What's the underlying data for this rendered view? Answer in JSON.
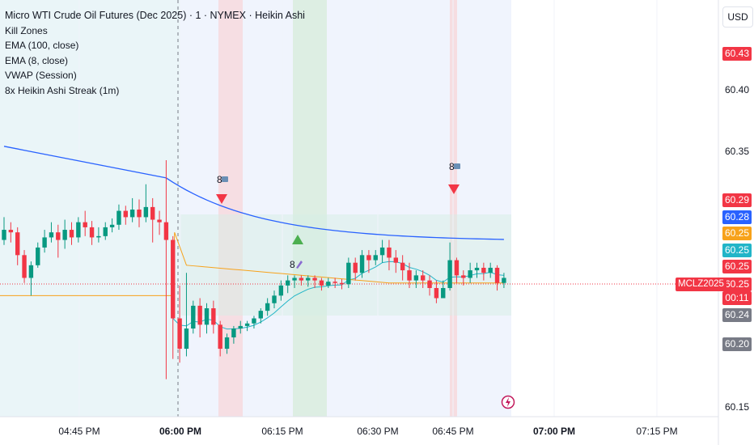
{
  "legend": {
    "title": "Micro WTI Crude Oil Futures (Dec 2025) · 1 · NYMEX · Heikin Ashi",
    "indicators": [
      "Kill Zones",
      "EMA (100, close)",
      "EMA (8, close)",
      "VWAP (Session)",
      "8x Heikin Ashi Streak (1m)"
    ]
  },
  "currency_button": "USD",
  "symbol_tag": "MCLZ2025",
  "countdown": "00:11",
  "price_axis": {
    "ticks": [
      "60.40",
      "60.35",
      "60.15"
    ],
    "badges": [
      {
        "price": 60.43,
        "text": "60.43",
        "color": "#f23645"
      },
      {
        "price": 60.29,
        "text": "60.29",
        "color": "#f23645"
      },
      {
        "price": 60.28,
        "text": "60.28",
        "color": "#2962ff"
      },
      {
        "price": 60.25,
        "text": "60.25",
        "color": "#f7a21b"
      },
      {
        "price": 60.25,
        "text": "60.25",
        "color": "#22b5c8"
      },
      {
        "price": 60.25,
        "text": "60.25",
        "color": "#f23645"
      },
      {
        "price": 60.25,
        "text": "60.25",
        "color": "#f23645"
      },
      {
        "price": 60.24,
        "text": "60.24",
        "color": "#787b86"
      },
      {
        "price": 60.2,
        "text": "60.20",
        "color": "#787b86"
      }
    ]
  },
  "time_axis": [
    {
      "label": "04:45 PM",
      "bold": false
    },
    {
      "label": "06:00 PM",
      "bold": true
    },
    {
      "label": "06:15 PM",
      "bold": false
    },
    {
      "label": "06:30 PM",
      "bold": false
    },
    {
      "label": "06:45 PM",
      "bold": false
    },
    {
      "label": "07:00 PM",
      "bold": true
    },
    {
      "label": "07:15 PM",
      "bold": false
    }
  ],
  "signals": [
    {
      "type": "sell",
      "label": "8",
      "time": "06:07 PM",
      "price": 60.29
    },
    {
      "type": "buy",
      "label": "8",
      "time": "06:15 PM",
      "price": 60.26
    },
    {
      "type": "sell",
      "label": "8",
      "time": "06:45 PM",
      "price": 60.31
    }
  ],
  "colors": {
    "up": "#089981",
    "down": "#f23645",
    "ema100": "#2962ff",
    "ema8": "#22b5c8",
    "vwap": "#f7a21b"
  },
  "chart_data": {
    "type": "candlestick",
    "title": "Micro WTI Crude Oil Futures (Dec 2025) · 1 · NYMEX · Heikin Ashi",
    "ylim": [
      60.14,
      60.45
    ],
    "series": [
      {
        "name": "EMA (100, close)",
        "values_start": 60.356,
        "values_mid": 60.302,
        "values_end": 60.281
      },
      {
        "name": "EMA (8, close)",
        "note_values": [
          60.248,
          60.262,
          60.25
        ]
      },
      {
        "name": "VWAP (Session)",
        "note_values": [
          60.24,
          60.25,
          60.25
        ]
      }
    ],
    "heikin_ashi": [
      [
        60.282,
        60.29,
        60.3,
        60.278
      ],
      [
        60.29,
        60.288,
        60.296,
        60.28
      ],
      [
        60.288,
        60.27,
        60.292,
        60.262
      ],
      [
        60.27,
        60.252,
        60.274,
        60.248
      ],
      [
        60.252,
        60.262,
        60.265,
        60.238
      ],
      [
        60.262,
        60.276,
        60.28,
        60.26
      ],
      [
        60.276,
        60.284,
        60.29,
        60.272
      ],
      [
        60.284,
        60.288,
        60.296,
        60.28
      ],
      [
        60.288,
        60.282,
        60.294,
        60.268
      ],
      [
        60.282,
        60.29,
        60.298,
        60.275
      ],
      [
        60.29,
        60.284,
        60.296,
        60.278
      ],
      [
        60.284,
        60.296,
        60.3,
        60.28
      ],
      [
        60.296,
        60.292,
        60.305,
        60.285
      ],
      [
        60.292,
        60.284,
        60.297,
        60.278
      ],
      [
        60.284,
        60.285,
        60.292,
        60.28
      ],
      [
        60.285,
        60.292,
        60.296,
        60.282
      ],
      [
        60.292,
        60.294,
        60.299,
        60.288
      ],
      [
        60.294,
        60.305,
        60.31,
        60.29
      ],
      [
        60.305,
        60.3,
        60.309,
        60.294
      ],
      [
        60.3,
        60.306,
        60.315,
        60.296
      ],
      [
        60.306,
        60.3,
        60.314,
        60.292
      ],
      [
        60.3,
        60.308,
        60.326,
        60.296
      ],
      [
        60.308,
        60.298,
        60.315,
        60.28
      ],
      [
        60.298,
        60.296,
        60.305,
        60.286
      ],
      [
        60.296,
        60.282,
        60.345,
        60.172
      ],
      [
        60.282,
        60.22,
        60.285,
        60.188
      ],
      [
        60.22,
        60.196,
        60.246,
        60.185
      ],
      [
        60.196,
        60.212,
        60.256,
        60.19
      ],
      [
        60.212,
        60.23,
        60.234,
        60.208
      ],
      [
        60.23,
        60.215,
        60.236,
        60.205
      ],
      [
        60.215,
        60.228,
        60.232,
        60.208
      ],
      [
        60.228,
        60.215,
        60.234,
        60.208
      ],
      [
        60.215,
        60.196,
        60.218,
        60.19
      ],
      [
        60.196,
        60.205,
        60.208,
        60.192
      ],
      [
        60.205,
        60.212,
        60.214,
        60.2
      ],
      [
        60.212,
        60.214,
        60.218,
        60.208
      ],
      [
        60.214,
        60.216,
        60.218,
        60.21
      ],
      [
        60.216,
        60.22,
        60.222,
        60.212
      ],
      [
        60.22,
        60.226,
        60.228,
        60.216
      ],
      [
        60.226,
        60.232,
        60.236,
        60.222
      ],
      [
        60.232,
        60.238,
        60.242,
        60.228
      ],
      [
        60.238,
        60.246,
        60.25,
        60.234
      ],
      [
        60.246,
        60.25,
        60.254,
        60.24
      ],
      [
        60.25,
        60.252,
        60.254,
        60.244
      ],
      [
        60.252,
        60.25,
        60.254,
        60.246
      ],
      [
        60.25,
        60.252,
        60.254,
        60.245
      ],
      [
        60.252,
        60.25,
        60.254,
        60.244
      ],
      [
        60.25,
        60.246,
        60.252,
        60.242
      ],
      [
        60.246,
        60.249,
        60.252,
        60.244
      ],
      [
        60.249,
        60.248,
        60.252,
        60.244
      ],
      [
        60.248,
        60.247,
        60.251,
        60.243
      ],
      [
        60.247,
        60.264,
        60.268,
        60.244
      ],
      [
        60.264,
        60.256,
        60.268,
        60.25
      ],
      [
        60.256,
        60.27,
        60.274,
        60.252
      ],
      [
        60.27,
        60.266,
        60.274,
        60.256
      ],
      [
        60.266,
        60.27,
        60.274,
        60.262
      ],
      [
        60.27,
        60.276,
        60.282,
        60.264
      ],
      [
        60.276,
        60.268,
        60.282,
        60.258
      ],
      [
        60.268,
        60.264,
        60.274,
        60.256
      ],
      [
        60.264,
        60.258,
        60.27,
        60.25
      ],
      [
        60.258,
        60.25,
        60.264,
        60.244
      ],
      [
        60.25,
        60.254,
        60.258,
        60.244
      ],
      [
        60.254,
        60.25,
        60.258,
        60.244
      ],
      [
        60.25,
        60.244,
        60.254,
        60.238
      ],
      [
        60.244,
        60.236,
        60.25,
        60.232
      ],
      [
        60.236,
        60.244,
        60.25,
        60.238
      ],
      [
        60.244,
        60.266,
        60.28,
        60.242
      ],
      [
        60.266,
        60.254,
        60.268,
        60.248
      ],
      [
        60.254,
        60.252,
        60.258,
        60.246
      ],
      [
        60.252,
        60.258,
        60.264,
        60.248
      ],
      [
        60.258,
        60.26,
        60.264,
        60.252
      ],
      [
        60.26,
        60.256,
        60.264,
        60.25
      ],
      [
        60.256,
        60.26,
        60.264,
        60.252
      ],
      [
        60.26,
        60.248,
        60.262,
        60.242
      ],
      [
        60.248,
        60.252,
        60.256,
        60.244
      ]
    ]
  }
}
